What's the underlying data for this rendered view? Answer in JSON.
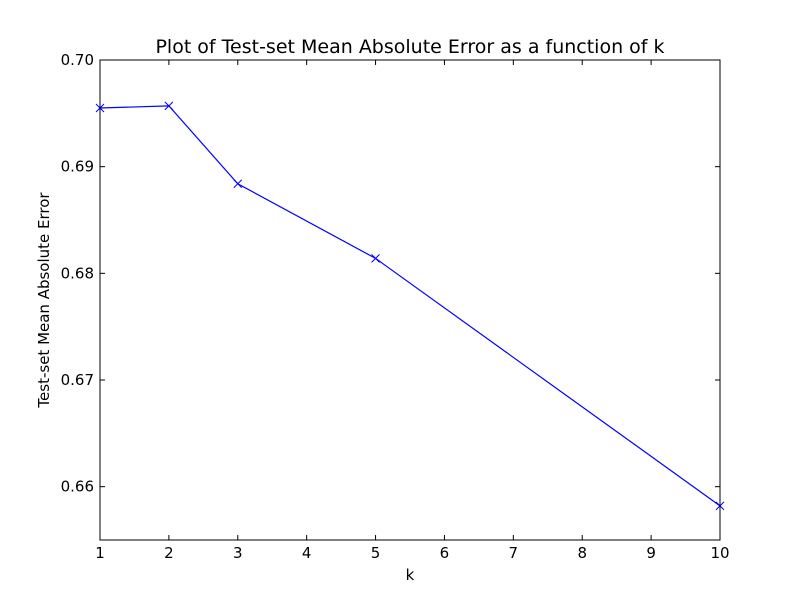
{
  "chart_data": {
    "type": "line",
    "title": "Plot of Test-set Mean Absolute Error as a function of k",
    "xlabel": "k",
    "ylabel": "Test-set Mean Absolute Error",
    "xlim": [
      1,
      10
    ],
    "ylim": [
      0.655,
      0.7
    ],
    "xticks": [
      1,
      2,
      3,
      4,
      5,
      6,
      7,
      8,
      9,
      10
    ],
    "xtick_labels": [
      "1",
      "2",
      "3",
      "4",
      "5",
      "6",
      "7",
      "8",
      "9",
      "10"
    ],
    "yticks": [
      0.66,
      0.67,
      0.68,
      0.69,
      0.7
    ],
    "ytick_labels": [
      "0.66",
      "0.67",
      "0.68",
      "0.69",
      "0.70"
    ],
    "grid": false,
    "series": [
      {
        "marker": "x",
        "color": "#0000ff",
        "x": [
          1,
          2,
          3,
          5,
          10
        ],
        "y": [
          0.6955,
          0.6957,
          0.6884,
          0.6814,
          0.6582
        ]
      }
    ]
  }
}
